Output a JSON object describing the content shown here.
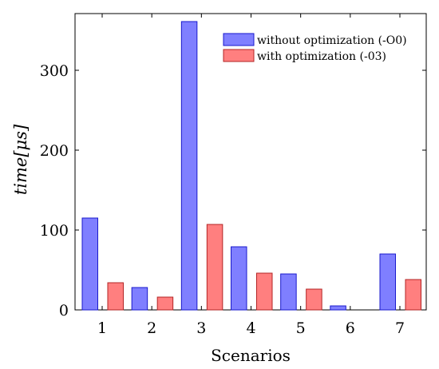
{
  "chart_data": {
    "type": "bar",
    "categories": [
      "1",
      "2",
      "3",
      "4",
      "5",
      "6",
      "7"
    ],
    "series": [
      {
        "name": "without optimization (-O0)",
        "values": [
          115,
          28,
          361,
          79,
          45,
          5,
          70
        ],
        "color": "#7f7fff",
        "stroke": "#1a1acc"
      },
      {
        "name": "with optimization (-03)",
        "values": [
          34,
          16,
          107,
          46,
          26,
          0,
          38
        ],
        "color": "#ff7f7f",
        "stroke": "#b32424"
      }
    ],
    "xlabel": "Scenarios",
    "ylabel_italic": "time",
    "ylabel_unit": "[μs]",
    "yticks": [
      0,
      100,
      200,
      300
    ],
    "ylim": [
      0,
      371
    ],
    "grid": false,
    "legend_position": "top-right"
  }
}
